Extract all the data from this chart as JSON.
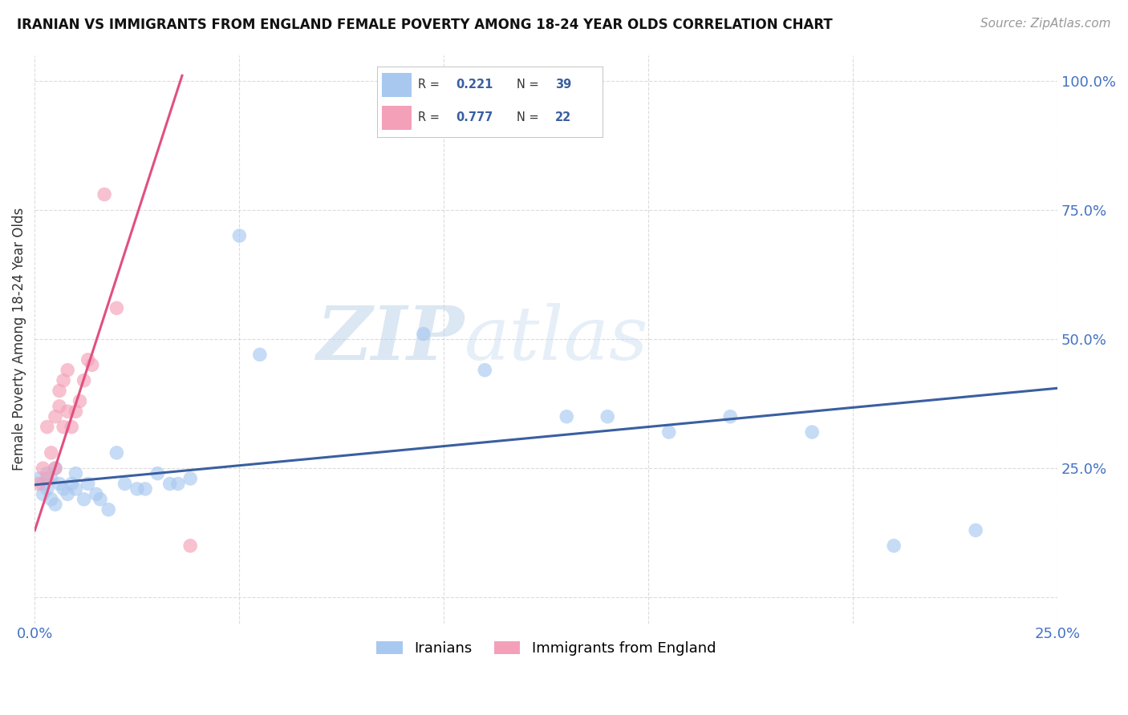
{
  "title": "IRANIAN VS IMMIGRANTS FROM ENGLAND FEMALE POVERTY AMONG 18-24 YEAR OLDS CORRELATION CHART",
  "source": "Source: ZipAtlas.com",
  "ylabel": "Female Poverty Among 18-24 Year Olds",
  "xlim": [
    0.0,
    0.25
  ],
  "ylim": [
    -0.05,
    1.05
  ],
  "xticks": [
    0.0,
    0.05,
    0.1,
    0.15,
    0.2,
    0.25
  ],
  "xticklabels": [
    "0.0%",
    "",
    "",
    "",
    "",
    "25.0%"
  ],
  "yticks": [
    0.0,
    0.25,
    0.5,
    0.75,
    1.0
  ],
  "yticklabels_right": [
    "",
    "25.0%",
    "50.0%",
    "75.0%",
    "100.0%"
  ],
  "iranians_x": [
    0.001,
    0.002,
    0.002,
    0.003,
    0.003,
    0.004,
    0.004,
    0.005,
    0.005,
    0.006,
    0.007,
    0.008,
    0.009,
    0.01,
    0.01,
    0.012,
    0.013,
    0.015,
    0.016,
    0.018,
    0.02,
    0.022,
    0.025,
    0.027,
    0.03,
    0.033,
    0.035,
    0.038,
    0.05,
    0.055,
    0.095,
    0.11,
    0.13,
    0.14,
    0.155,
    0.17,
    0.19,
    0.21,
    0.23
  ],
  "iranians_y": [
    0.23,
    0.22,
    0.2,
    0.21,
    0.24,
    0.23,
    0.19,
    0.18,
    0.25,
    0.22,
    0.21,
    0.2,
    0.22,
    0.24,
    0.21,
    0.19,
    0.22,
    0.2,
    0.19,
    0.17,
    0.28,
    0.22,
    0.21,
    0.21,
    0.24,
    0.22,
    0.22,
    0.23,
    0.7,
    0.47,
    0.51,
    0.44,
    0.35,
    0.35,
    0.32,
    0.35,
    0.32,
    0.1,
    0.13
  ],
  "england_x": [
    0.001,
    0.002,
    0.003,
    0.003,
    0.004,
    0.005,
    0.005,
    0.006,
    0.006,
    0.007,
    0.007,
    0.008,
    0.008,
    0.009,
    0.01,
    0.011,
    0.012,
    0.013,
    0.014,
    0.017,
    0.02,
    0.038
  ],
  "england_y": [
    0.22,
    0.25,
    0.23,
    0.33,
    0.28,
    0.35,
    0.25,
    0.4,
    0.37,
    0.33,
    0.42,
    0.36,
    0.44,
    0.33,
    0.36,
    0.38,
    0.42,
    0.46,
    0.45,
    0.78,
    0.56,
    0.1
  ],
  "R_iranians": 0.221,
  "N_iranians": 39,
  "R_england": 0.777,
  "N_england": 22,
  "color_iranians": "#A8C8F0",
  "color_england": "#F4A0B8",
  "line_color_iranians": "#3A5FA0",
  "line_color_england": "#E05080",
  "eng_line_x0": 0.0,
  "eng_line_y0": 0.13,
  "eng_line_x1": 0.036,
  "eng_line_y1": 1.01,
  "iran_line_x0": 0.0,
  "iran_line_y0": 0.218,
  "iran_line_x1": 0.25,
  "iran_line_y1": 0.405,
  "watermark_text": "ZIPatlas",
  "watermark_color": "#C8DCF0",
  "background_color": "#FFFFFF",
  "grid_color": "#CCCCCC"
}
